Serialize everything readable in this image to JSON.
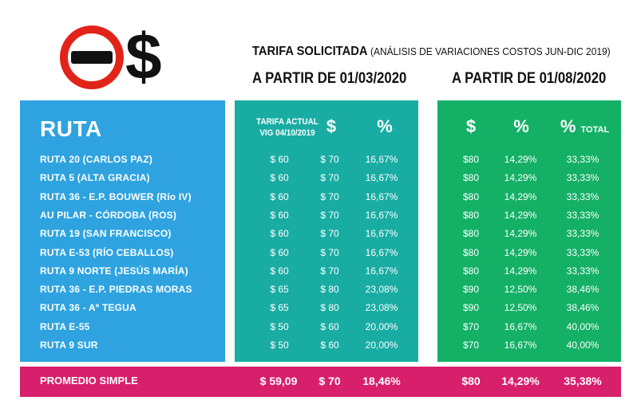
{
  "logo": {
    "dollar_sign": "$"
  },
  "header": {
    "title": "TARIFA SOLICITADA",
    "title_sub": "(ANÁLISIS DE VARIACIONES COSTOS JUN-DIC 2019)",
    "from_1": "A PARTIR DE 01/03/2020",
    "from_2": "A PARTIR DE 01/08/2020"
  },
  "columns": {
    "ruta": "RUTA",
    "tarifa_actual": "TARIFA ACTUAL",
    "vig": "VIG 04/10/2019",
    "price1": "$",
    "pct1": "%",
    "price2": "$",
    "pct2": "%",
    "pct3": "%",
    "pct3_suffix": "TOTAL"
  },
  "rows": [
    {
      "ruta": "RUTA 20 (CARLOS PAZ)",
      "actual": "$ 60",
      "p1": "$ 70",
      "pct1": "16,67%",
      "p2": "$80",
      "pct2": "14,29%",
      "pct3": "33,33%"
    },
    {
      "ruta": "RUTA 5 (ALTA GRACIA)",
      "actual": "$ 60",
      "p1": "$ 70",
      "pct1": "16,67%",
      "p2": "$80",
      "pct2": "14,29%",
      "pct3": "33,33%"
    },
    {
      "ruta": "RUTA 36 - E.P. BOUWER (Río IV)",
      "actual": "$ 60",
      "p1": "$ 70",
      "pct1": "16,67%",
      "p2": "$80",
      "pct2": "14,29%",
      "pct3": "33,33%"
    },
    {
      "ruta": "AU PILAR - CÓRDOBA (ROS)",
      "actual": "$ 60",
      "p1": "$ 70",
      "pct1": "16,67%",
      "p2": "$80",
      "pct2": "14,29%",
      "pct3": "33,33%"
    },
    {
      "ruta": "RUTA 19 (SAN FRANCISCO)",
      "actual": "$ 60",
      "p1": "$ 70",
      "pct1": "16,67%",
      "p2": "$80",
      "pct2": "14,29%",
      "pct3": "33,33%"
    },
    {
      "ruta": "RUTA E-53 (RÍO CEBALLOS)",
      "actual": "$ 60",
      "p1": "$ 70",
      "pct1": "16,67%",
      "p2": "$80",
      "pct2": "14,29%",
      "pct3": "33,33%"
    },
    {
      "ruta": "RUTA 9 NORTE (JESÚS MARÍA)",
      "actual": "$ 60",
      "p1": "$ 70",
      "pct1": "16,67%",
      "p2": "$80",
      "pct2": "14,29%",
      "pct3": "33,33%"
    },
    {
      "ruta": "RUTA 36 - E.P. PIEDRAS MORAS",
      "actual": "$ 65",
      "p1": "$ 80",
      "pct1": "23,08%",
      "p2": "$90",
      "pct2": "12,50%",
      "pct3": "38,46%"
    },
    {
      "ruta": "RUTA 36 - Aº TEGUA",
      "actual": "$ 65",
      "p1": "$ 80",
      "pct1": "23,08%",
      "p2": "$90",
      "pct2": "12,50%",
      "pct3": "38,46%"
    },
    {
      "ruta": "RUTA E-55",
      "actual": "$ 50",
      "p1": "$ 60",
      "pct1": "20,00%",
      "p2": "$70",
      "pct2": "16,67%",
      "pct3": "40,00%"
    },
    {
      "ruta": "RUTA 9 SUR",
      "actual": "$ 50",
      "p1": "$ 60",
      "pct1": "20,00%",
      "p2": "$70",
      "pct2": "16,67%",
      "pct3": "40,00%"
    }
  ],
  "footer": {
    "label": "PROMEDIO SIMPLE",
    "actual": "$ 59,09",
    "p1": "$ 70",
    "pct1": "18,46%",
    "p2": "$80",
    "pct2": "14,29%",
    "pct3": "35,38%"
  },
  "colors": {
    "ruta_panel": "#2ea3e0",
    "actual_panel": "#19aca3",
    "nueva_panel": "#14b066",
    "footer": "#d81f6b",
    "logo_red": "#e2231a"
  }
}
